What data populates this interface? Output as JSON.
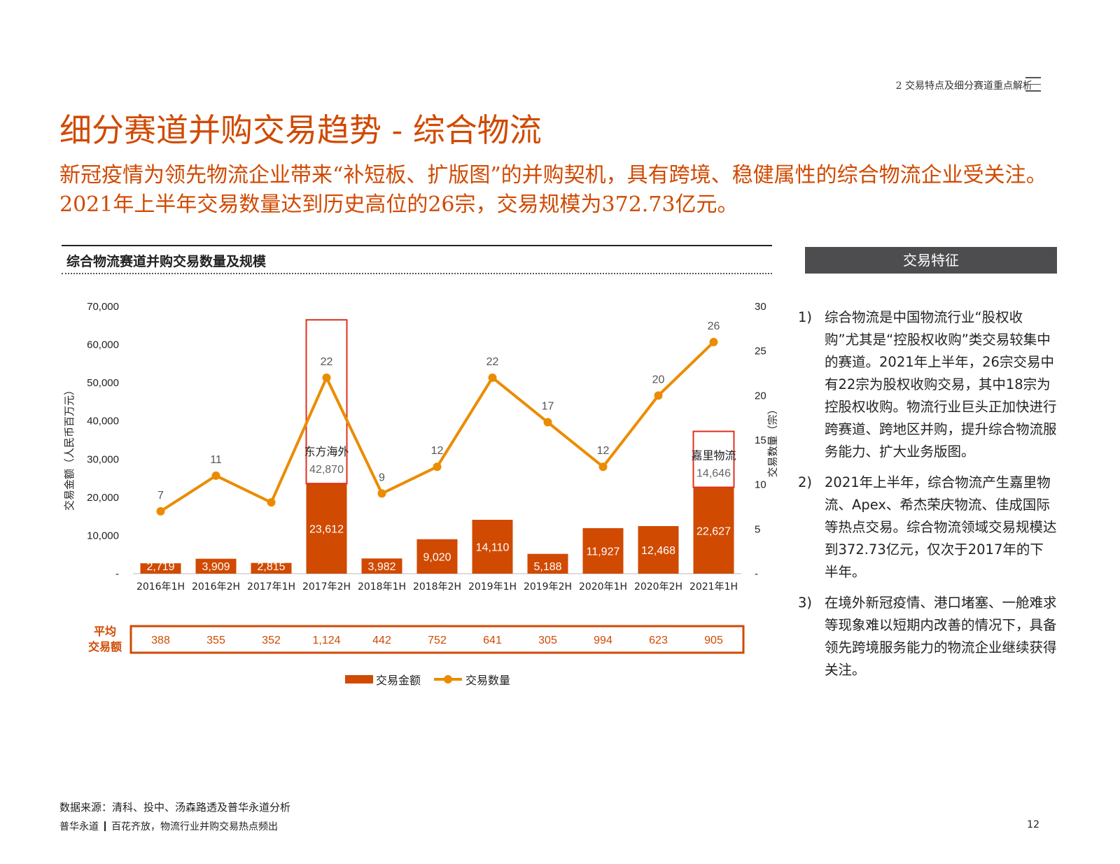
{
  "header": {
    "section": "2 交易特点及细分赛道重点解析",
    "title": "细分赛道并购交易趋势 - 综合物流",
    "subtitle": "新冠疫情为领先物流企业带来“补短板、扩版图”的并购契机，具有跨境、稳健属性的综合物流企业受关注。2021年上半年交易数量达到历史高位的26宗，交易规模为372.73亿元。"
  },
  "chart_section_title": "综合物流赛道并购交易数量及规模",
  "colors": {
    "accent": "#d04a02",
    "bar": "#d04a02",
    "line": "#eb8c00",
    "highlight_box": "#e0301e",
    "header_bg": "#4d4d4f"
  },
  "chart_data": {
    "type": "bar",
    "categories": [
      "2016年1H",
      "2016年2H",
      "2017年1H",
      "2017年2H",
      "2018年1H",
      "2018年2H",
      "2019年1H",
      "2019年2H",
      "2020年1H",
      "2020年2H",
      "2021年1H"
    ],
    "series": [
      {
        "name": "交易金额",
        "type": "bar",
        "axis": "left",
        "values": [
          2719,
          3909,
          2815,
          23612,
          3982,
          9020,
          14110,
          5188,
          11927,
          12468,
          22627
        ],
        "labels": [
          "2,719",
          "3,909",
          "2,815",
          "23,612",
          "3,982",
          "9,020",
          "14,110",
          "5,188",
          "11,927",
          "12,468",
          "22,627"
        ]
      },
      {
        "name": "交易数量",
        "type": "line",
        "axis": "right",
        "values": [
          7,
          11,
          8,
          22,
          9,
          12,
          22,
          17,
          12,
          20,
          26
        ],
        "labels": [
          "7",
          "11",
          "",
          "22",
          "9",
          "12",
          "22",
          "17",
          "12",
          "20",
          "26"
        ]
      }
    ],
    "highlights": [
      {
        "category": "2017年2H",
        "value": 42870,
        "value_label": "42,870",
        "label": "东方海外"
      },
      {
        "category": "2021年1H",
        "value": 14646,
        "value_label": "14,646",
        "label": "嘉里物流"
      }
    ],
    "ylabel_left": "交易金额（人民币百万元）",
    "ylabel_right": "交易数量（宗）",
    "ylim_left": [
      0,
      70000
    ],
    "ylim_right": [
      0,
      30
    ],
    "yticks_left": [
      "-",
      "10,000",
      "20,000",
      "30,000",
      "40,000",
      "50,000",
      "60,000",
      "70,000"
    ],
    "yticks_right": [
      "-",
      "5",
      "10",
      "15",
      "20",
      "25",
      "30"
    ],
    "average_row": {
      "label_line1": "平均",
      "label_line2": "交易额",
      "values": [
        "388",
        "355",
        "352",
        "1,124",
        "442",
        "752",
        "641",
        "305",
        "994",
        "623",
        "905"
      ]
    },
    "legend": {
      "placement": "bottom",
      "bar": "交易金额",
      "line": "交易数量"
    }
  },
  "features": {
    "header": "交易特征",
    "items": [
      {
        "num": "1)",
        "text": "综合物流是中国物流行业“股权收购”尤其是“控股权收购”类交易较集中的赛道。2021年上半年，26宗交易中有22宗为股权收购交易，其中18宗为控股权收购。物流行业巨头正加快进行跨赛道、跨地区并购，提升综合物流服务能力、扩大业务版图。"
      },
      {
        "num": "2)",
        "text": "2021年上半年，综合物流产生嘉里物流、Apex、希杰荣庆物流、佳成国际等热点交易。综合物流领域交易规模达到372.73亿元，仅次于2017年的下半年。"
      },
      {
        "num": "3)",
        "text": "在境外新冠疫情、港口堵塞、一舱难求等现象难以短期内改善的情况下，具备领先跨境服务能力的物流企业继续获得关注。"
      }
    ]
  },
  "footer": {
    "source": "数据来源：清科、投中、汤森路透及普华永道分析",
    "brand": "普华永道",
    "tagline": "百花齐放，物流行业并购交易热点频出",
    "page": "12"
  }
}
